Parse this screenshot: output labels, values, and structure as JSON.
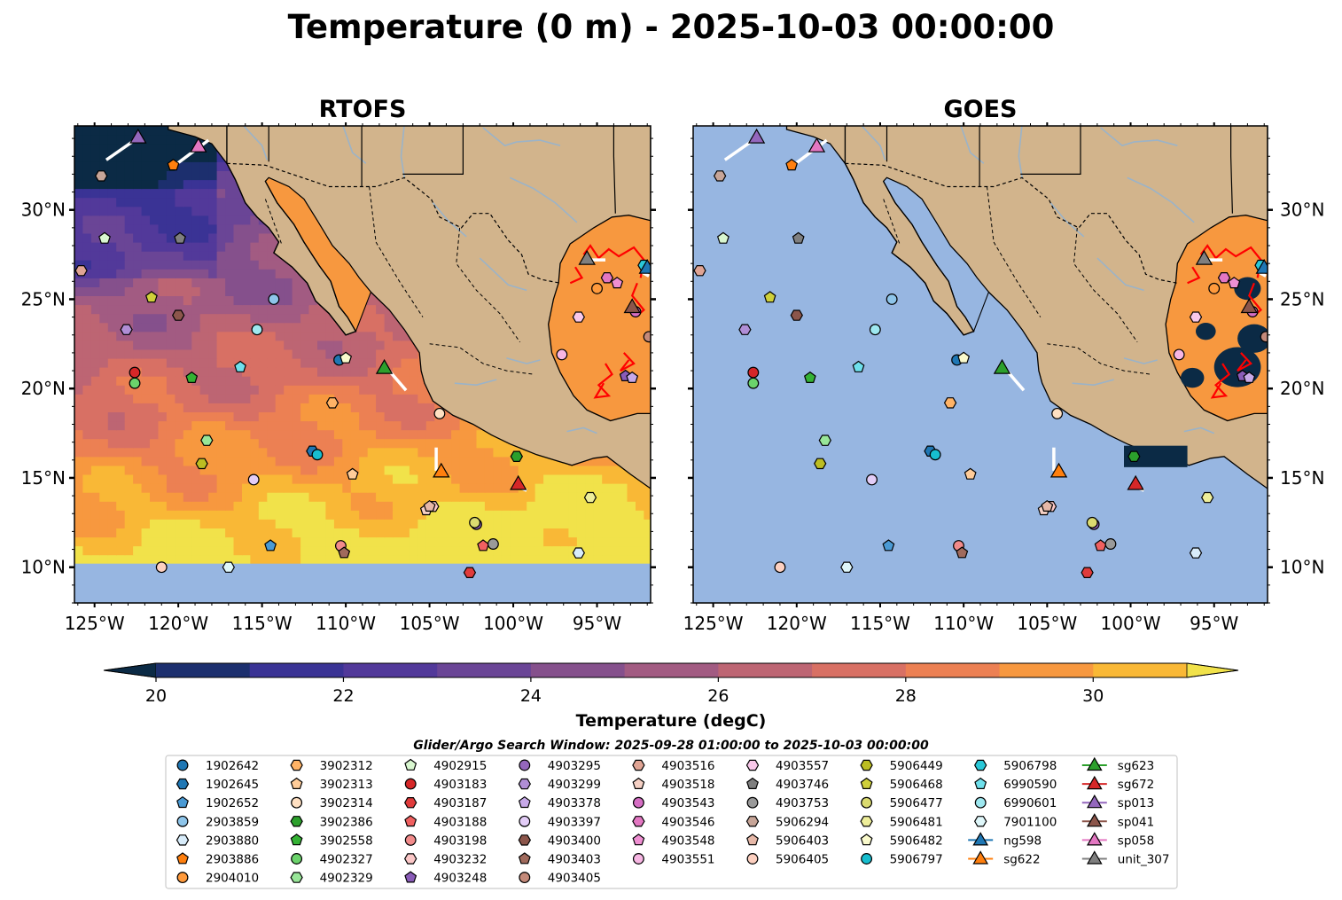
{
  "title": "Temperature (0 m) - 2025-10-03 00:00:00",
  "panels": [
    {
      "title": "RTOFS",
      "field": "model",
      "ylabels_side": "left"
    },
    {
      "title": "GOES",
      "field": "satellite",
      "ylabels_side": "right"
    }
  ],
  "colorbar": {
    "label": "Temperature (degC)",
    "vmin": 20,
    "vmax": 31,
    "ticks": [
      20,
      22,
      24,
      26,
      28,
      30
    ],
    "colors": [
      "#0b2a45",
      "#1c2f6e",
      "#3a3395",
      "#52399a",
      "#6a4596",
      "#85508c",
      "#a25b82",
      "#bd6573",
      "#d87064",
      "#ec8053",
      "#f7983f",
      "#f9b836",
      "#f1e24a"
    ],
    "extend": "both"
  },
  "colors": {
    "land": "#d2b48c",
    "ocean_nodata": "#97b6e1",
    "river": "#9bb3c8",
    "front": "#ff0000",
    "track": "#ffffff"
  },
  "search_window": "Glider/Argo Search Window: 2025-09-28 01:00:00 to 2025-10-03 00:00:00",
  "chart_data": {
    "type": "map",
    "extent": {
      "lon_min": -126.2,
      "lon_max": -91.8,
      "lat_min": 8.0,
      "lat_max": 34.7
    },
    "x_ticks": [
      -125,
      -120,
      -115,
      -110,
      -105,
      -100,
      -95
    ],
    "x_tick_labels": [
      "125°W",
      "120°W",
      "115°W",
      "110°W",
      "105°W",
      "100°W",
      "95°W"
    ],
    "y_ticks": [
      10,
      15,
      20,
      25,
      30
    ],
    "y_tick_labels": [
      "10°N",
      "15°N",
      "20°N",
      "25°N",
      "30°N"
    ],
    "argo_floats": [
      {
        "id": "1902642",
        "lon": -110.4,
        "lat": 21.6
      },
      {
        "id": "1902645",
        "lon": -112.0,
        "lat": 16.5
      },
      {
        "id": "1902652",
        "lon": -114.5,
        "lat": 11.2
      },
      {
        "id": "2903859",
        "lon": -114.3,
        "lat": 25.0
      },
      {
        "id": "2903880",
        "lon": -96.1,
        "lat": 10.8
      },
      {
        "id": "2903886",
        "lon": -120.3,
        "lat": 32.5
      },
      {
        "id": "2904010",
        "lon": -95.0,
        "lat": 25.6
      },
      {
        "id": "3902312",
        "lon": -110.8,
        "lat": 19.2
      },
      {
        "id": "3902313",
        "lon": -109.6,
        "lat": 15.2
      },
      {
        "id": "3902314",
        "lon": -104.4,
        "lat": 18.6
      },
      {
        "id": "3902386",
        "lon": -99.8,
        "lat": 16.2
      },
      {
        "id": "3902558",
        "lon": -119.2,
        "lat": 20.6
      },
      {
        "id": "4902327",
        "lon": -122.6,
        "lat": 20.3
      },
      {
        "id": "4902329",
        "lon": -118.3,
        "lat": 17.1
      },
      {
        "id": "4902915",
        "lon": -124.4,
        "lat": 28.4
      },
      {
        "id": "4903183",
        "lon": -122.6,
        "lat": 20.9
      },
      {
        "id": "4903187",
        "lon": -102.6,
        "lat": 9.7
      },
      {
        "id": "4903188",
        "lon": -101.8,
        "lat": 11.2
      },
      {
        "id": "4903198",
        "lon": -110.3,
        "lat": 11.2
      },
      {
        "id": "4903232",
        "lon": -104.8,
        "lat": 13.4
      },
      {
        "id": "4903248",
        "lon": -93.3,
        "lat": 20.7
      },
      {
        "id": "4903295",
        "lon": -102.2,
        "lat": 12.4
      },
      {
        "id": "4903299",
        "lon": -123.1,
        "lat": 23.3
      },
      {
        "id": "4903378",
        "lon": -92.9,
        "lat": 20.6
      },
      {
        "id": "4903397",
        "lon": -115.5,
        "lat": 14.9
      },
      {
        "id": "4903400",
        "lon": -120.0,
        "lat": 24.1
      },
      {
        "id": "4903403",
        "lon": -110.1,
        "lat": 10.8
      },
      {
        "id": "4903405",
        "lon": -91.9,
        "lat": 22.9
      },
      {
        "id": "4903516",
        "lon": -125.8,
        "lat": 26.6
      },
      {
        "id": "4903518",
        "lon": -105.2,
        "lat": 13.2
      },
      {
        "id": "4903543",
        "lon": -92.7,
        "lat": 24.3
      },
      {
        "id": "4903546",
        "lon": -94.4,
        "lat": 26.2
      },
      {
        "id": "4903548",
        "lon": -93.8,
        "lat": 25.9
      },
      {
        "id": "4903551",
        "lon": -97.1,
        "lat": 21.9
      },
      {
        "id": "4903557",
        "lon": -96.1,
        "lat": 24.0
      },
      {
        "id": "4903746",
        "lon": -119.9,
        "lat": 28.4
      },
      {
        "id": "4903753",
        "lon": -101.2,
        "lat": 11.3
      },
      {
        "id": "5906294",
        "lon": -124.6,
        "lat": 31.9
      },
      {
        "id": "5906403",
        "lon": -105.0,
        "lat": 13.4
      },
      {
        "id": "5906405",
        "lon": -121.0,
        "lat": 10.0
      },
      {
        "id": "5906449",
        "lon": -118.6,
        "lat": 15.8
      },
      {
        "id": "5906468",
        "lon": -121.6,
        "lat": 25.1
      },
      {
        "id": "5906477",
        "lon": -102.3,
        "lat": 12.5
      },
      {
        "id": "5906481",
        "lon": -95.4,
        "lat": 13.9
      },
      {
        "id": "5906482",
        "lon": -110.0,
        "lat": 21.7
      },
      {
        "id": "5906797",
        "lon": -111.7,
        "lat": 16.3
      },
      {
        "id": "5906798",
        "lon": -92.2,
        "lat": 26.9
      },
      {
        "id": "6990590",
        "lon": -116.3,
        "lat": 21.2
      },
      {
        "id": "6990601",
        "lon": -115.3,
        "lat": 23.3
      },
      {
        "id": "7901100",
        "lon": -117.0,
        "lat": 10.0
      }
    ],
    "gliders": [
      {
        "id": "ng598",
        "lon": -92.0,
        "lat": 26.6
      },
      {
        "id": "sg622",
        "lon": -104.3,
        "lat": 15.2
      },
      {
        "id": "sg623",
        "lon": -107.7,
        "lat": 21.0
      },
      {
        "id": "sg672",
        "lon": -99.7,
        "lat": 14.5
      },
      {
        "id": "sp013",
        "lon": -122.4,
        "lat": 33.9
      },
      {
        "id": "sp041",
        "lon": -92.9,
        "lat": 24.4
      },
      {
        "id": "sp058",
        "lon": -118.8,
        "lat": 33.4
      },
      {
        "id": "unit_307",
        "lon": -95.6,
        "lat": 27.1
      }
    ]
  },
  "legend": {
    "columns": [
      [
        {
          "label": "1902642",
          "shape": "circle",
          "color": "#1f77b4"
        },
        {
          "label": "1902645",
          "shape": "hexagon",
          "color": "#1f77b4"
        },
        {
          "label": "1902652",
          "shape": "pentagon",
          "color": "#4a9ad4"
        },
        {
          "label": "2903859",
          "shape": "circle",
          "color": "#8ec5ea"
        },
        {
          "label": "2903880",
          "shape": "hexagon",
          "color": "#d8ecfa"
        },
        {
          "label": "2903886",
          "shape": "pentagon",
          "color": "#ff7f0e"
        },
        {
          "label": "2904010",
          "shape": "circle",
          "color": "#ff9a3c"
        }
      ],
      [
        {
          "label": "3902312",
          "shape": "hexagon",
          "color": "#ffb366"
        },
        {
          "label": "3902313",
          "shape": "pentagon",
          "color": "#ffcc99"
        },
        {
          "label": "3902314",
          "shape": "circle",
          "color": "#ffe0c2"
        },
        {
          "label": "3902386",
          "shape": "hexagon",
          "color": "#2ca02c"
        },
        {
          "label": "3902558",
          "shape": "pentagon",
          "color": "#34b234"
        },
        {
          "label": "4902327",
          "shape": "circle",
          "color": "#6bd36b"
        },
        {
          "label": "4902329",
          "shape": "hexagon",
          "color": "#98e698"
        }
      ],
      [
        {
          "label": "4902915",
          "shape": "pentagon",
          "color": "#d9f7d0"
        },
        {
          "label": "4903183",
          "shape": "circle",
          "color": "#d62728"
        },
        {
          "label": "4903187",
          "shape": "hexagon",
          "color": "#e03b3b"
        },
        {
          "label": "4903188",
          "shape": "pentagon",
          "color": "#f06060"
        },
        {
          "label": "4903198",
          "shape": "circle",
          "color": "#f28b8b"
        },
        {
          "label": "4903232",
          "shape": "hexagon",
          "color": "#fbc7c7"
        },
        {
          "label": "4903248",
          "shape": "pentagon",
          "color": "#8a5cb8"
        }
      ],
      [
        {
          "label": "4903295",
          "shape": "circle",
          "color": "#9467bd"
        },
        {
          "label": "4903299",
          "shape": "hexagon",
          "color": "#b08ed6"
        },
        {
          "label": "4903378",
          "shape": "pentagon",
          "color": "#c7a9e8"
        },
        {
          "label": "4903397",
          "shape": "circle",
          "color": "#e3cdf7"
        },
        {
          "label": "4903400",
          "shape": "hexagon",
          "color": "#8c564b"
        },
        {
          "label": "4903403",
          "shape": "pentagon",
          "color": "#a06a5c"
        },
        {
          "label": "4903405",
          "shape": "circle",
          "color": "#c48a7a"
        }
      ],
      [
        {
          "label": "4903516",
          "shape": "hexagon",
          "color": "#e0a494"
        },
        {
          "label": "4903518",
          "shape": "pentagon",
          "color": "#f5d0c4"
        },
        {
          "label": "4903543",
          "shape": "circle",
          "color": "#d66ec4"
        },
        {
          "label": "4903546",
          "shape": "hexagon",
          "color": "#e377c2"
        },
        {
          "label": "4903548",
          "shape": "pentagon",
          "color": "#ef8fd2"
        },
        {
          "label": "4903551",
          "shape": "circle",
          "color": "#f7b6e3"
        }
      ],
      [
        {
          "label": "4903557",
          "shape": "hexagon",
          "color": "#f9c8ea"
        },
        {
          "label": "4903746",
          "shape": "pentagon",
          "color": "#7f7f7f"
        },
        {
          "label": "4903753",
          "shape": "circle",
          "color": "#9a9a9a"
        },
        {
          "label": "5906294",
          "shape": "hexagon",
          "color": "#c7a598"
        },
        {
          "label": "5906403",
          "shape": "pentagon",
          "color": "#e6b8a8"
        },
        {
          "label": "5906405",
          "shape": "circle",
          "color": "#fdd0c0"
        }
      ],
      [
        {
          "label": "5906449",
          "shape": "hexagon",
          "color": "#bcbd22"
        },
        {
          "label": "5906468",
          "shape": "pentagon",
          "color": "#cfd03a"
        },
        {
          "label": "5906477",
          "shape": "circle",
          "color": "#dbdb70"
        },
        {
          "label": "5906481",
          "shape": "hexagon",
          "color": "#eeee9a"
        },
        {
          "label": "5906482",
          "shape": "pentagon",
          "color": "#fafacc"
        },
        {
          "label": "5906797",
          "shape": "circle",
          "color": "#17becf"
        }
      ],
      [
        {
          "label": "5906798",
          "shape": "hexagon",
          "color": "#2ac8d8"
        },
        {
          "label": "6990590",
          "shape": "pentagon",
          "color": "#6fe0ec"
        },
        {
          "label": "6990601",
          "shape": "circle",
          "color": "#9ee8f0"
        },
        {
          "label": "7901100",
          "shape": "hexagon",
          "color": "#dff7fa"
        },
        {
          "label": "ng598",
          "shape": "triangle",
          "color": "#1f77b4",
          "line": true
        },
        {
          "label": "sg622",
          "shape": "triangle",
          "color": "#ff7f0e",
          "line": true
        }
      ],
      [
        {
          "label": "sg623",
          "shape": "triangle",
          "color": "#2ca02c",
          "line": true
        },
        {
          "label": "sg672",
          "shape": "triangle",
          "color": "#d62728",
          "line": true
        },
        {
          "label": "sp013",
          "shape": "triangle",
          "color": "#9467bd",
          "line": true
        },
        {
          "label": "sp041",
          "shape": "triangle",
          "color": "#8c564b",
          "line": true
        },
        {
          "label": "sp058",
          "shape": "triangle",
          "color": "#e377c2",
          "line": true
        },
        {
          "label": "unit_307",
          "shape": "triangle",
          "color": "#7f7f7f",
          "line": true
        }
      ]
    ]
  }
}
